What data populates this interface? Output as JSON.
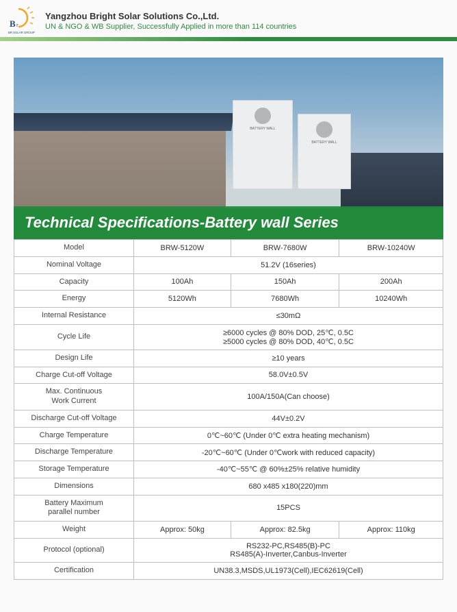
{
  "header": {
    "company_name": "Yangzhou Bright Solar Solutions Co.,Ltd.",
    "tagline": "UN & NGO & WB Supplier, Successfully Applied in more than 114 countries",
    "logo_group_text": "BR SOLAR GROUP",
    "logo_light_text": "light"
  },
  "hero": {
    "title": "Technical Specifications-Battery wall Series"
  },
  "table": {
    "rows": [
      {
        "label": "Model",
        "v": [
          "BRW-5120W",
          "BRW-7680W",
          "BRW-10240W"
        ],
        "span": "split"
      },
      {
        "label": "Nominal Voltage",
        "v": [
          "51.2V (16series)"
        ],
        "span": "full"
      },
      {
        "label": "Capacity",
        "v": [
          "100Ah",
          "150Ah",
          "200Ah"
        ],
        "span": "split"
      },
      {
        "label": "Energy",
        "v": [
          "5120Wh",
          "7680Wh",
          "10240Wh"
        ],
        "span": "split"
      },
      {
        "label": "Internal Resistance",
        "v": [
          "≤30mΩ"
        ],
        "span": "full"
      },
      {
        "label": "Cycle Life",
        "v": [
          "≥6000 cycles @ 80% DOD, 25℃, 0.5C\n≥5000 cycles @ 80% DOD, 40℃, 0.5C"
        ],
        "span": "full",
        "tall": true
      },
      {
        "label": "Design Life",
        "v": [
          "≥10 years"
        ],
        "span": "full"
      },
      {
        "label": "Charge Cut-off Voltage",
        "v": [
          "58.0V±0.5V"
        ],
        "span": "full"
      },
      {
        "label": "Max. Continuous\nWork Current",
        "v": [
          "100A/150A(Can choose)"
        ],
        "span": "full",
        "tall": true
      },
      {
        "label": "Discharge Cut-off Voltage",
        "v": [
          "44V±0.2V"
        ],
        "span": "full"
      },
      {
        "label": "Charge Temperature",
        "v": [
          "0℃~60℃ (Under 0℃ extra heating mechanism)"
        ],
        "span": "full"
      },
      {
        "label": "Discharge Temperature",
        "v": [
          "-20℃~60℃ (Under 0℃work with reduced capacity)"
        ],
        "span": "full"
      },
      {
        "label": "Storage Temperature",
        "v": [
          "-40℃~55℃ @ 60%±25% relative humidity"
        ],
        "span": "full"
      },
      {
        "label": "Dimensions",
        "v": [
          "680 x485 x180(220)mm"
        ],
        "span": "full"
      },
      {
        "label": "Battery Maximum\nparallel number",
        "v": [
          "15PCS"
        ],
        "span": "full",
        "tall": true
      },
      {
        "label": "Weight",
        "v": [
          "Approx: 50kg",
          "Approx: 82.5kg",
          "Approx: 110kg"
        ],
        "span": "split"
      },
      {
        "label": "Protocol (optional)",
        "v": [
          "RS232-PC,RS485(B)-PC\nRS485(A)-Inverter,Canbus-Inverter"
        ],
        "span": "full",
        "tall": true
      },
      {
        "label": "Certification",
        "v": [
          "UN38.3,MSDS,UL1973(Cell),IEC62619(Cell)"
        ],
        "span": "full"
      }
    ]
  },
  "colors": {
    "brand_green": "#2d8a3e",
    "border_gray": "#bfbfbf"
  }
}
